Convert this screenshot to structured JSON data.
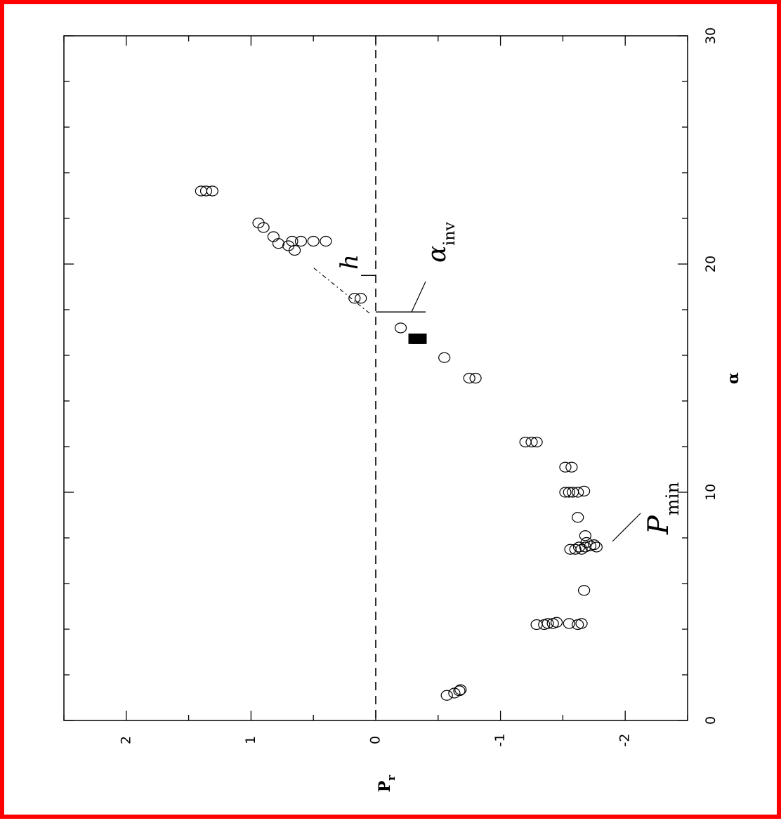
{
  "chart_data": {
    "type": "scatter",
    "orientation": "rotated-90-counterclockwise",
    "xlabel": "α",
    "ylabel": "P_r",
    "xlim": [
      0,
      30
    ],
    "ylim": [
      -2.5,
      2.5
    ],
    "x_ticks": [
      "0",
      "10",
      "20",
      "30"
    ],
    "y_ticks": [
      "-2",
      "-1",
      "0",
      "1",
      "2"
    ],
    "grid": false,
    "legend": "none",
    "reference_line": {
      "y": 0,
      "style": "dashed"
    },
    "series": [
      {
        "marker": "open-circle",
        "points": [
          [
            1.1,
            -0.57
          ],
          [
            1.2,
            -0.63
          ],
          [
            1.3,
            -0.67
          ],
          [
            1.35,
            -0.68
          ],
          [
            4.2,
            -1.29
          ],
          [
            4.2,
            -1.35
          ],
          [
            4.25,
            -1.38
          ],
          [
            4.25,
            -1.42
          ],
          [
            4.3,
            -1.45
          ],
          [
            4.25,
            -1.55
          ],
          [
            4.2,
            -1.62
          ],
          [
            4.25,
            -1.65
          ],
          [
            5.7,
            -1.67
          ],
          [
            7.6,
            -1.63
          ],
          [
            7.6,
            -1.68
          ],
          [
            7.65,
            -1.72
          ],
          [
            7.7,
            -1.75
          ],
          [
            7.6,
            -1.77
          ],
          [
            7.5,
            -1.56
          ],
          [
            7.5,
            -1.6
          ],
          [
            7.5,
            -1.65
          ],
          [
            7.8,
            -1.69
          ],
          [
            8.1,
            -1.68
          ],
          [
            8.9,
            -1.62
          ],
          [
            10.0,
            -1.52
          ],
          [
            10.0,
            -1.55
          ],
          [
            10.0,
            -1.58
          ],
          [
            10.0,
            -1.62
          ],
          [
            10.05,
            -1.67
          ],
          [
            11.1,
            -1.52
          ],
          [
            11.1,
            -1.57
          ],
          [
            12.2,
            -1.2
          ],
          [
            12.2,
            -1.25
          ],
          [
            12.2,
            -1.29
          ],
          [
            15.0,
            -0.75
          ],
          [
            15.0,
            -0.8
          ],
          [
            15.9,
            -0.55
          ],
          [
            17.2,
            -0.2
          ],
          [
            18.5,
            0.12
          ],
          [
            18.5,
            0.17
          ],
          [
            20.6,
            0.65
          ],
          [
            20.8,
            0.7
          ],
          [
            20.9,
            0.78
          ],
          [
            21.0,
            0.5
          ],
          [
            21.0,
            0.6
          ],
          [
            21.0,
            0.67
          ],
          [
            21.0,
            0.4
          ],
          [
            21.2,
            0.82
          ],
          [
            21.6,
            0.9
          ],
          [
            21.8,
            0.94
          ],
          [
            23.2,
            1.31
          ],
          [
            23.2,
            1.36
          ],
          [
            23.2,
            1.4
          ]
        ]
      },
      {
        "marker": "filled-square",
        "points": [
          [
            16.65,
            -0.29
          ],
          [
            16.65,
            -0.32
          ],
          [
            16.65,
            -0.35
          ],
          [
            16.65,
            -0.38
          ],
          [
            16.8,
            -0.29
          ],
          [
            16.8,
            -0.32
          ],
          [
            16.8,
            -0.35
          ],
          [
            16.8,
            -0.38
          ]
        ]
      }
    ],
    "annotations": [
      {
        "label": "α_inv",
        "main": "α",
        "sub": "inv",
        "x": 17.9,
        "y": 0
      },
      {
        "label": "h",
        "main": "h",
        "sub": "",
        "x": 19.5,
        "y": 0
      },
      {
        "label": "P_min",
        "main": "P",
        "sub": "min",
        "x": 7.9,
        "y": -1.9
      }
    ]
  }
}
